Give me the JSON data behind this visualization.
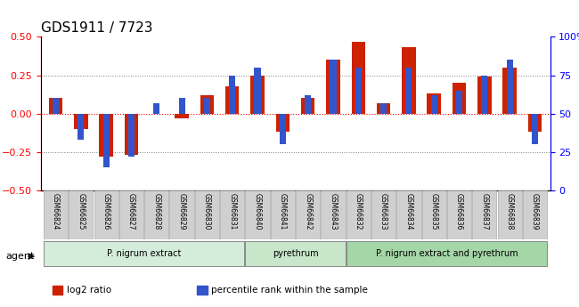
{
  "title": "GDS1911 / 7723",
  "samples": [
    "GSM66824",
    "GSM66825",
    "GSM66826",
    "GSM66827",
    "GSM66828",
    "GSM66829",
    "GSM66830",
    "GSM66831",
    "GSM66840",
    "GSM66841",
    "GSM66842",
    "GSM66843",
    "GSM66832",
    "GSM66833",
    "GSM66834",
    "GSM66835",
    "GSM66836",
    "GSM66837",
    "GSM66838",
    "GSM66839"
  ],
  "log2_ratio": [
    0.1,
    -0.1,
    -0.28,
    -0.27,
    0.0,
    -0.03,
    0.12,
    0.18,
    0.25,
    -0.12,
    0.1,
    0.35,
    0.47,
    0.07,
    0.43,
    0.13,
    0.2,
    0.24,
    0.3,
    -0.12
  ],
  "percentile": [
    60,
    33,
    15,
    22,
    57,
    60,
    60,
    75,
    80,
    30,
    62,
    85,
    80,
    57,
    80,
    62,
    65,
    75,
    85,
    30
  ],
  "groups": [
    {
      "label": "P. nigrum extract",
      "start": 0,
      "end": 8,
      "color": "#d4edda"
    },
    {
      "label": "pyrethrum",
      "start": 8,
      "end": 12,
      "color": "#c8e6c9"
    },
    {
      "label": "P. nigrum extract and pyrethrum",
      "start": 12,
      "end": 20,
      "color": "#a5d6a7"
    }
  ],
  "bar_color_red": "#cc2200",
  "bar_color_blue": "#3355cc",
  "ylim_left": [
    -0.5,
    0.5
  ],
  "ylim_right": [
    0,
    100
  ],
  "yticks_left": [
    -0.5,
    -0.25,
    0.0,
    0.25,
    0.5
  ],
  "yticks_right": [
    0,
    25,
    50,
    75,
    100
  ],
  "hlines": [
    -0.25,
    0.0,
    0.25
  ],
  "legend_items": [
    {
      "label": "log2 ratio",
      "color": "#cc2200"
    },
    {
      "label": "percentile rank within the sample",
      "color": "#3355cc"
    }
  ]
}
